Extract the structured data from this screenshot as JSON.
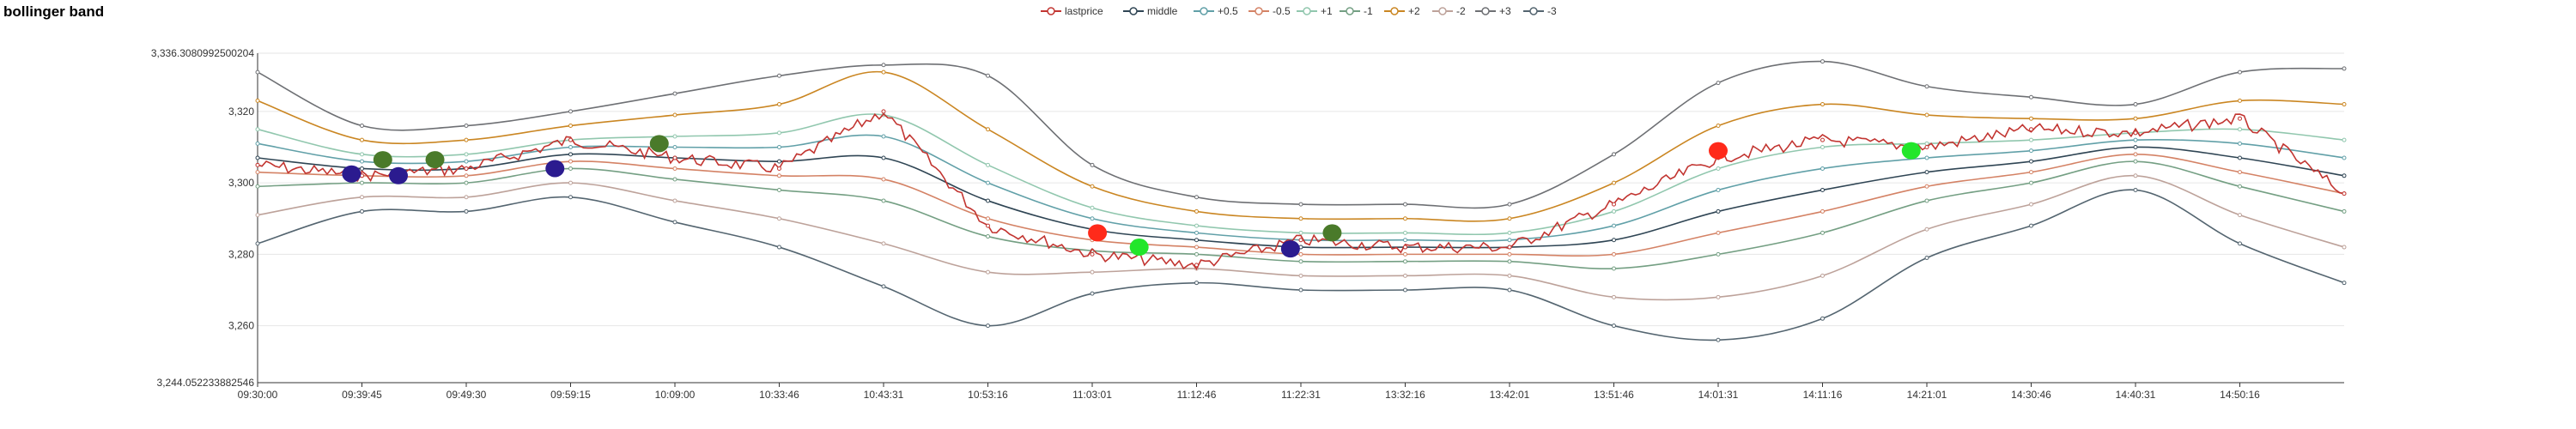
{
  "title": "bollinger band",
  "legend": [
    {
      "name": "lastprice",
      "color": "#c23531"
    },
    {
      "name": "middle",
      "color": "#2f4554"
    },
    {
      "name": "+0.5",
      "color": "#61a0a8"
    },
    {
      "name": "-0.5",
      "color": "#d48265"
    },
    {
      "name": "+1",
      "color": "#91c7ae"
    },
    {
      "name": "-1",
      "color": "#749f83"
    },
    {
      "name": "+2",
      "color": "#ca8622"
    },
    {
      "name": "-2",
      "color": "#bda29a"
    },
    {
      "name": "+3",
      "color": "#6e7074"
    },
    {
      "name": "-3",
      "color": "#546570"
    }
  ],
  "chart_data": {
    "type": "line",
    "title": "bollinger band",
    "xlabel": "",
    "ylabel": "",
    "ylim": [
      3244.052233882546,
      3336.3080992500204
    ],
    "y_tick_labels": [
      "3,244.052233882546",
      "3,260",
      "3,280",
      "3,300",
      "3,320",
      "3,336.3080992500204"
    ],
    "y_tick_values": [
      3244.052233882546,
      3260,
      3280,
      3300,
      3320,
      3336.3080992500204
    ],
    "x_tick_labels": [
      "09:30:00",
      "09:39:45",
      "09:49:30",
      "09:59:15",
      "10:09:00",
      "10:33:46",
      "10:43:31",
      "10:53:16",
      "11:03:01",
      "11:12:46",
      "11:22:31",
      "13:32:16",
      "13:42:01",
      "13:51:46",
      "14:01:31",
      "14:11:16",
      "14:21:01",
      "14:30:46",
      "14:40:31",
      "14:50:16"
    ],
    "grid": true,
    "legend_position": "top-center",
    "x_points": [
      0,
      1,
      2,
      3,
      4,
      5,
      6,
      7,
      8,
      9,
      10,
      11,
      12,
      13,
      14,
      15,
      16,
      17,
      18,
      19,
      20
    ],
    "series": [
      {
        "name": "lastprice",
        "values": [
          3305,
          3302,
          3304,
          3312,
          3307,
          3304,
          3320,
          3288,
          3280,
          3277,
          3284,
          3282,
          3282,
          3294,
          3307,
          3312,
          3310,
          3315,
          3314,
          3318,
          3297
        ]
      },
      {
        "name": "middle",
        "values": [
          3307,
          3304,
          3304,
          3308,
          3307,
          3306,
          3307,
          3295,
          3287,
          3284,
          3282,
          3282,
          3282,
          3284,
          3292,
          3298,
          3303,
          3306,
          3310,
          3307,
          3302
        ]
      },
      {
        "name": "+0.5",
        "values": [
          3311,
          3306,
          3306,
          3310,
          3310,
          3310,
          3313,
          3300,
          3290,
          3286,
          3284,
          3284,
          3284,
          3288,
          3298,
          3304,
          3307,
          3309,
          3312,
          3311,
          3307
        ]
      },
      {
        "name": "-0.5",
        "values": [
          3303,
          3302,
          3302,
          3306,
          3304,
          3302,
          3301,
          3290,
          3284,
          3282,
          3280,
          3280,
          3280,
          3280,
          3286,
          3292,
          3299,
          3303,
          3308,
          3303,
          3297
        ]
      },
      {
        "name": "+1",
        "values": [
          3315,
          3308,
          3308,
          3312,
          3313,
          3314,
          3319,
          3305,
          3293,
          3288,
          3286,
          3286,
          3286,
          3292,
          3304,
          3310,
          3311,
          3312,
          3314,
          3315,
          3312
        ]
      },
      {
        "name": "-1",
        "values": [
          3299,
          3300,
          3300,
          3304,
          3301,
          3298,
          3295,
          3285,
          3281,
          3280,
          3278,
          3278,
          3278,
          3276,
          3280,
          3286,
          3295,
          3300,
          3306,
          3299,
          3292
        ]
      },
      {
        "name": "+2",
        "values": [
          3323,
          3312,
          3312,
          3316,
          3319,
          3322,
          3331,
          3315,
          3299,
          3292,
          3290,
          3290,
          3290,
          3300,
          3316,
          3322,
          3319,
          3318,
          3318,
          3323,
          3322
        ]
      },
      {
        "name": "-2",
        "values": [
          3291,
          3296,
          3296,
          3300,
          3295,
          3290,
          3283,
          3275,
          3275,
          3276,
          3274,
          3274,
          3274,
          3268,
          3268,
          3274,
          3287,
          3294,
          3302,
          3291,
          3282
        ]
      },
      {
        "name": "+3",
        "values": [
          3331,
          3316,
          3316,
          3320,
          3325,
          3330,
          3333,
          3330,
          3305,
          3296,
          3294,
          3294,
          3294,
          3308,
          3328,
          3334,
          3327,
          3324,
          3322,
          3331,
          3332
        ]
      },
      {
        "name": "-3",
        "values": [
          3283,
          3292,
          3292,
          3296,
          3289,
          3282,
          3271,
          3260,
          3269,
          3272,
          3270,
          3270,
          3270,
          3260,
          3256,
          3262,
          3279,
          3288,
          3298,
          3283,
          3272
        ]
      }
    ],
    "markers": [
      {
        "x": 0.9,
        "y": 3302.5,
        "color": "#2b1b8f"
      },
      {
        "x": 1.35,
        "y": 3302,
        "color": "#2b1b8f"
      },
      {
        "x": 1.2,
        "y": 3306.5,
        "color": "#4a7a2a"
      },
      {
        "x": 1.7,
        "y": 3306.5,
        "color": "#4a7a2a"
      },
      {
        "x": 2.85,
        "y": 3304,
        "color": "#2b1b8f"
      },
      {
        "x": 3.85,
        "y": 3311,
        "color": "#4a7a2a"
      },
      {
        "x": 8.05,
        "y": 3286,
        "color": "#ff2a1a"
      },
      {
        "x": 8.45,
        "y": 3282,
        "color": "#22e62a"
      },
      {
        "x": 9.9,
        "y": 3281.5,
        "color": "#2b1b8f"
      },
      {
        "x": 10.3,
        "y": 3286,
        "color": "#4a7a2a"
      },
      {
        "x": 14.0,
        "y": 3309,
        "color": "#ff2a1a"
      },
      {
        "x": 15.85,
        "y": 3309,
        "color": "#22e62a"
      }
    ]
  }
}
